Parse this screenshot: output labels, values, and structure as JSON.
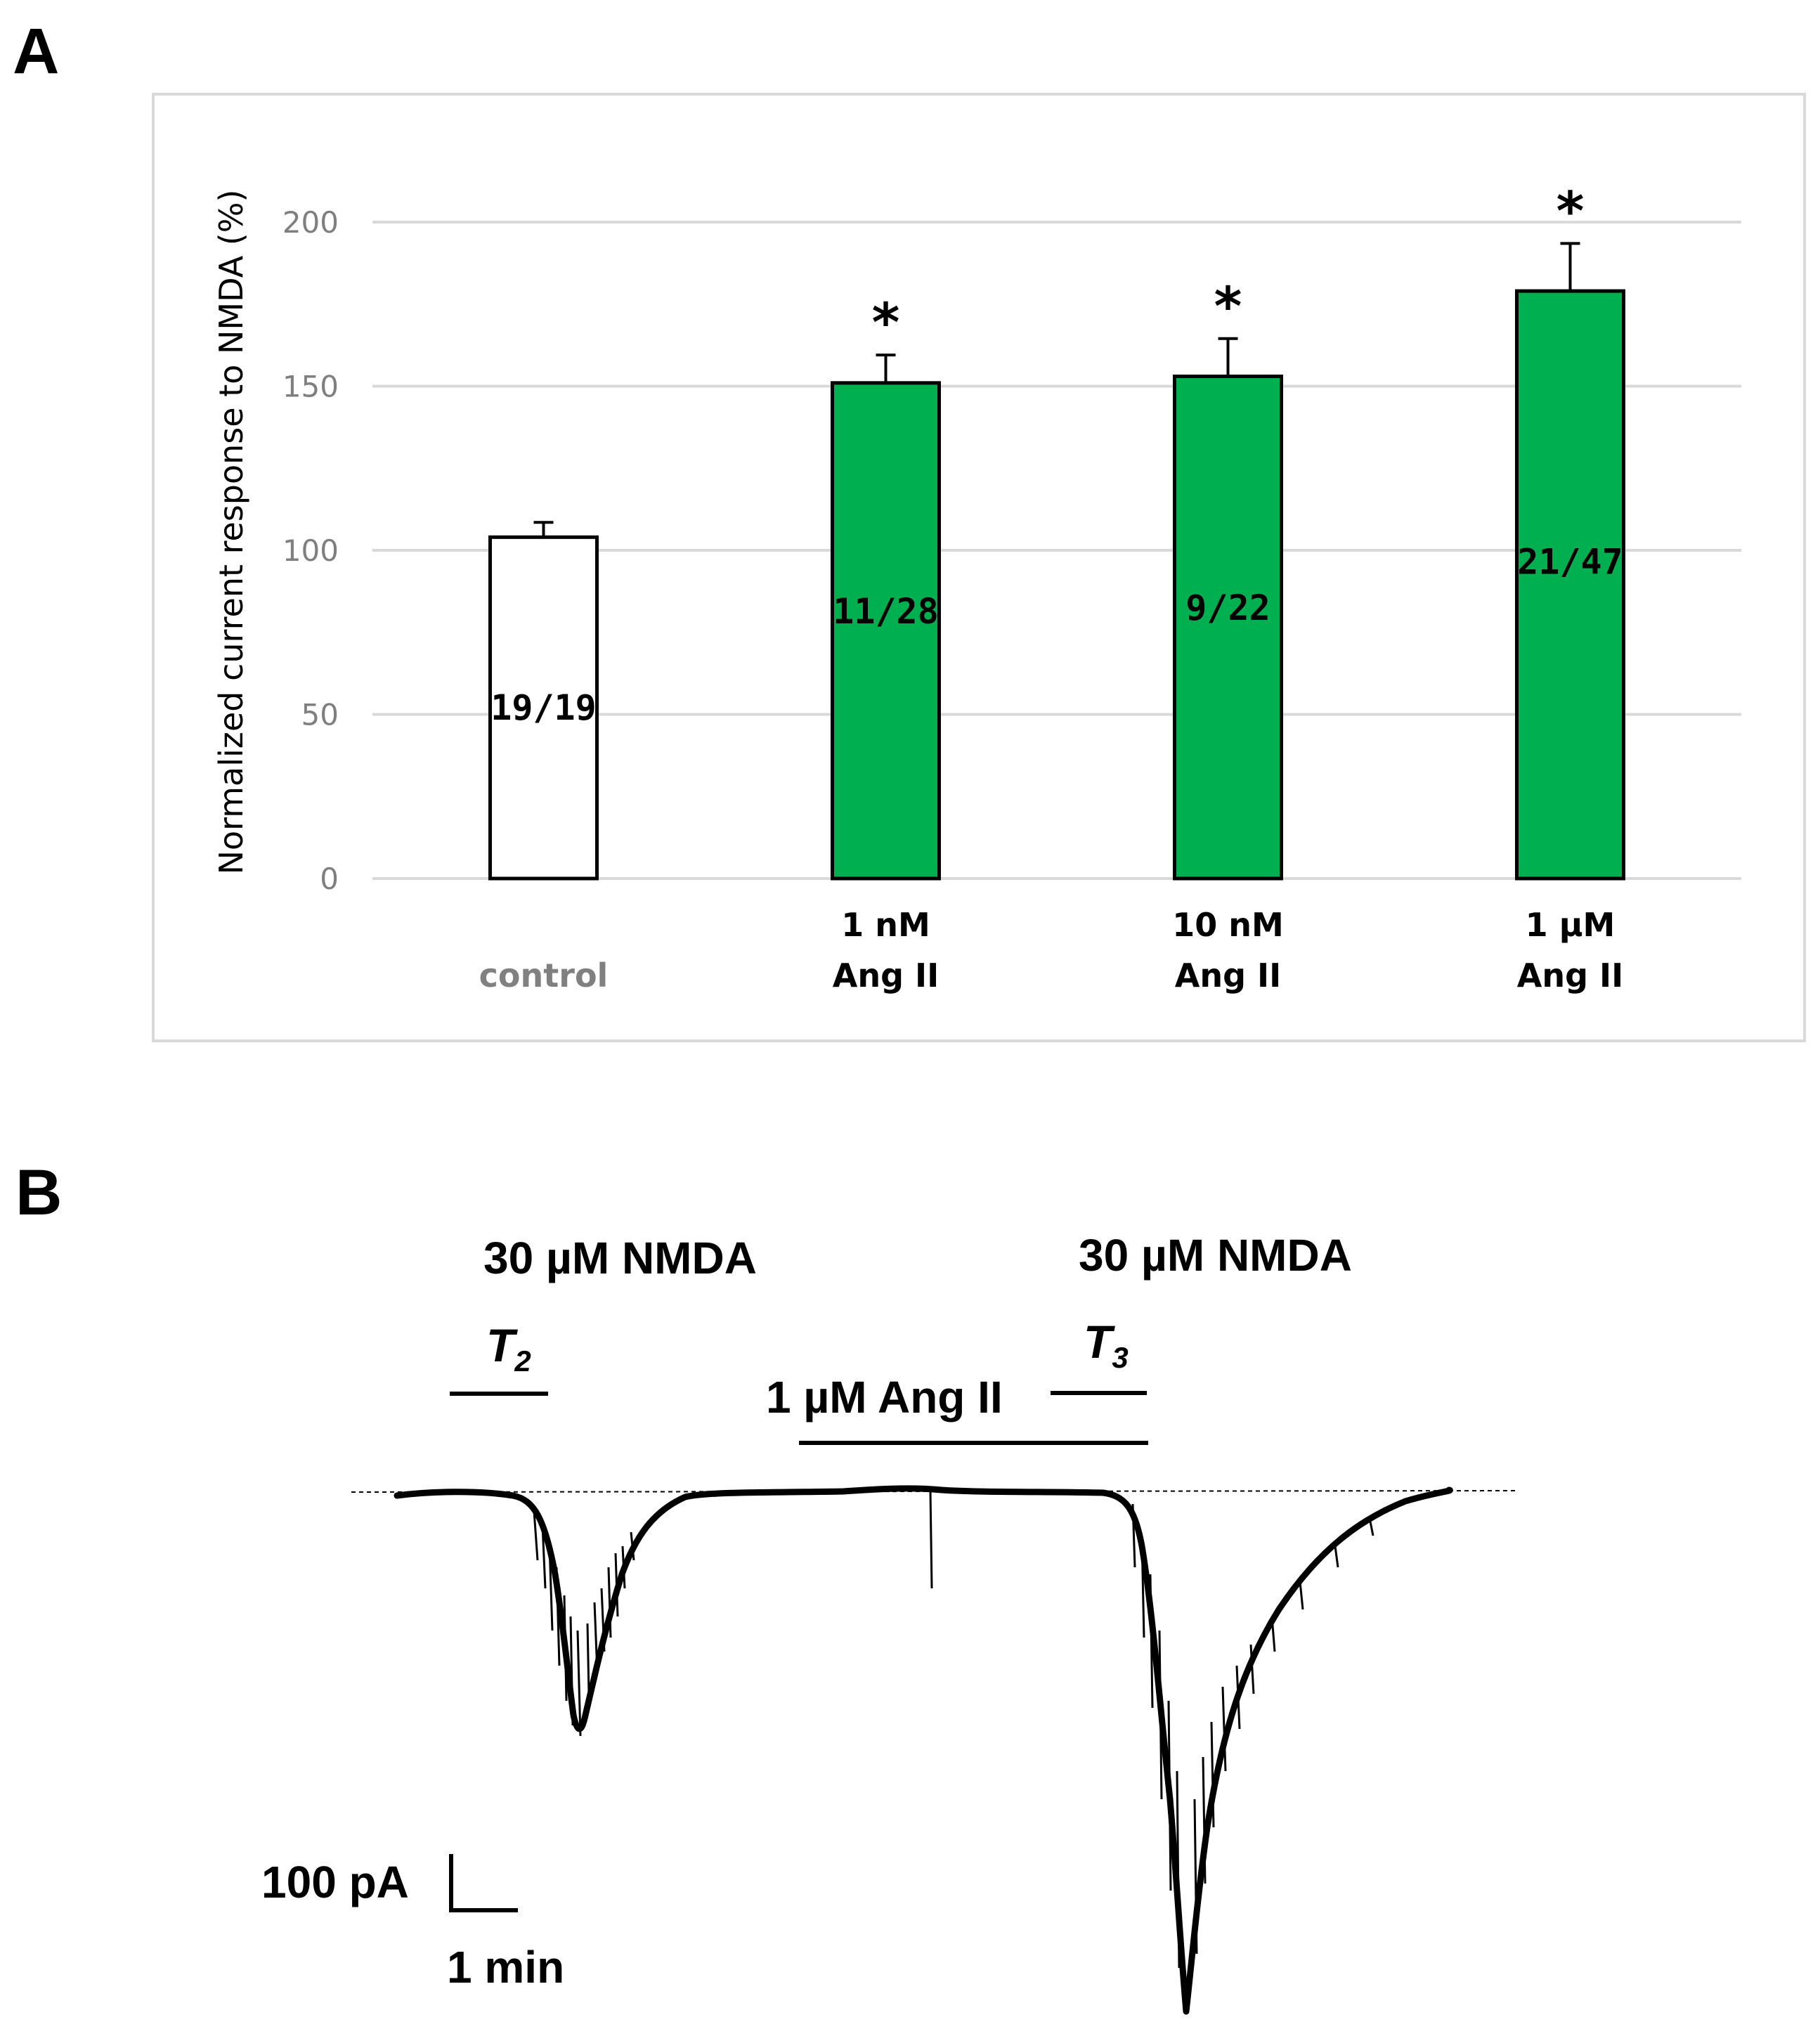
{
  "panel_a": {
    "letter": "A"
  },
  "panel_b": {
    "letter": "B",
    "nmda_label_1": "30 µM NMDA",
    "nmda_label_2": "30 µM NMDA",
    "t2_main": "T",
    "t2_sub": "2",
    "t3_main": "T",
    "t3_sub": "3",
    "angii_label": "1 µM Ang II",
    "scale_current": "100 pA",
    "scale_time": "1 min"
  },
  "chart_data": {
    "type": "bar",
    "title": "",
    "xlabel": "",
    "ylabel": "Normalized current response to NMDA (%)",
    "ylim": [
      0,
      200
    ],
    "yticks": [
      0,
      50,
      100,
      150,
      200
    ],
    "grid": true,
    "categories": [
      {
        "line1": "",
        "line2": "control"
      },
      {
        "line1": "1 nM",
        "line2": "Ang II"
      },
      {
        "line1": "10 nM",
        "line2": "Ang II"
      },
      {
        "line1": "1 µM",
        "line2": "Ang II"
      }
    ],
    "values": [
      104,
      151,
      153,
      179
    ],
    "errors": [
      4.5,
      8.5,
      11.5,
      14.5
    ],
    "n_labels": [
      "19/19",
      "11/28",
      "9/22",
      "21/47"
    ],
    "significance": [
      "",
      "*",
      "*",
      "*"
    ],
    "colors": {
      "control": "#ffffff",
      "treatment": "#00b050",
      "outline": "#000000",
      "grid": "#d9d9d9",
      "frame": "#d9d9d9"
    }
  }
}
